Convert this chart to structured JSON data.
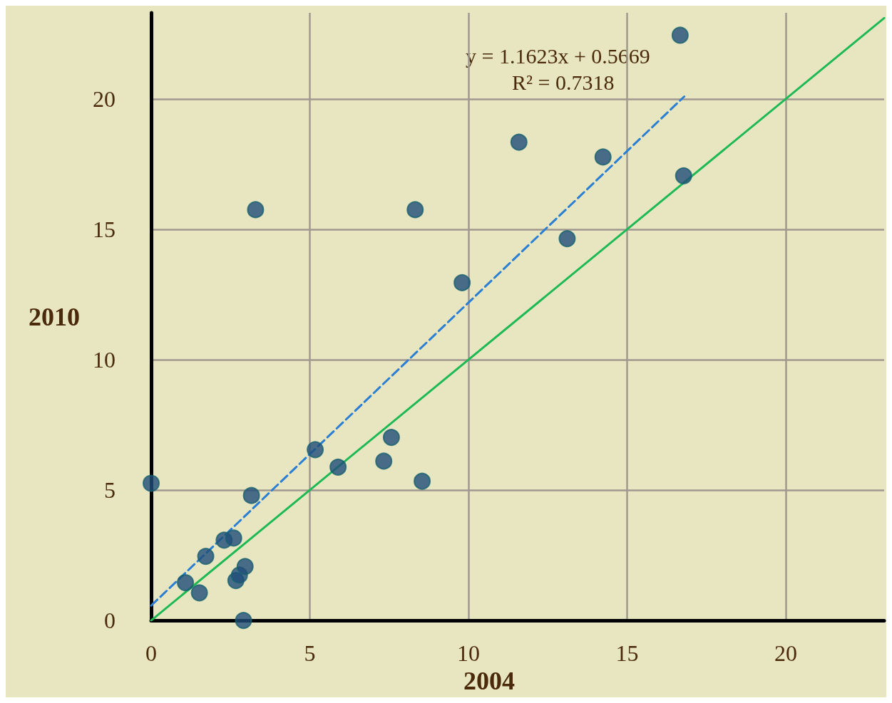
{
  "chart_data": {
    "type": "scatter",
    "xlabel": "2004",
    "ylabel": "2010",
    "xlim": [
      0,
      23.1
    ],
    "ylim": [
      0,
      23.3
    ],
    "xticks": [
      0,
      5,
      10,
      15,
      20
    ],
    "yticks": [
      0,
      5,
      10,
      15,
      20
    ],
    "grid": true,
    "series": [
      {
        "color": "#1f4e79",
        "marker": "circle",
        "x": [
          0,
          1.08,
          1.52,
          1.72,
          2.3,
          2.6,
          2.67,
          2.78,
          2.96,
          2.91,
          3.16,
          3.29,
          5.17,
          5.89,
          7.33,
          7.57,
          8.32,
          8.54,
          9.8,
          11.59,
          13.11,
          14.24,
          16.67,
          16.78
        ],
        "values": [
          5.26,
          1.45,
          1.06,
          2.46,
          3.08,
          3.16,
          1.53,
          1.74,
          2.07,
          0,
          4.79,
          15.75,
          6.55,
          5.88,
          6.11,
          7.02,
          15.75,
          5.34,
          12.95,
          18.34,
          14.64,
          17.77,
          22.44,
          17.05
        ]
      },
      {
        "type": "line",
        "color": "#2a7fd4",
        "marker": "none",
        "line_style": "dashed",
        "x": [
          0,
          16.8
        ],
        "values": [
          0.57,
          20.09
        ]
      },
      {
        "type": "line",
        "color": "#1db954",
        "marker": "none",
        "line_style": "solid",
        "x": [
          0,
          23.1
        ],
        "values": [
          0,
          23.1
        ]
      }
    ],
    "annotations": [
      "y = 1.1623x + 0.5669",
      "R² = 0.7318"
    ]
  }
}
